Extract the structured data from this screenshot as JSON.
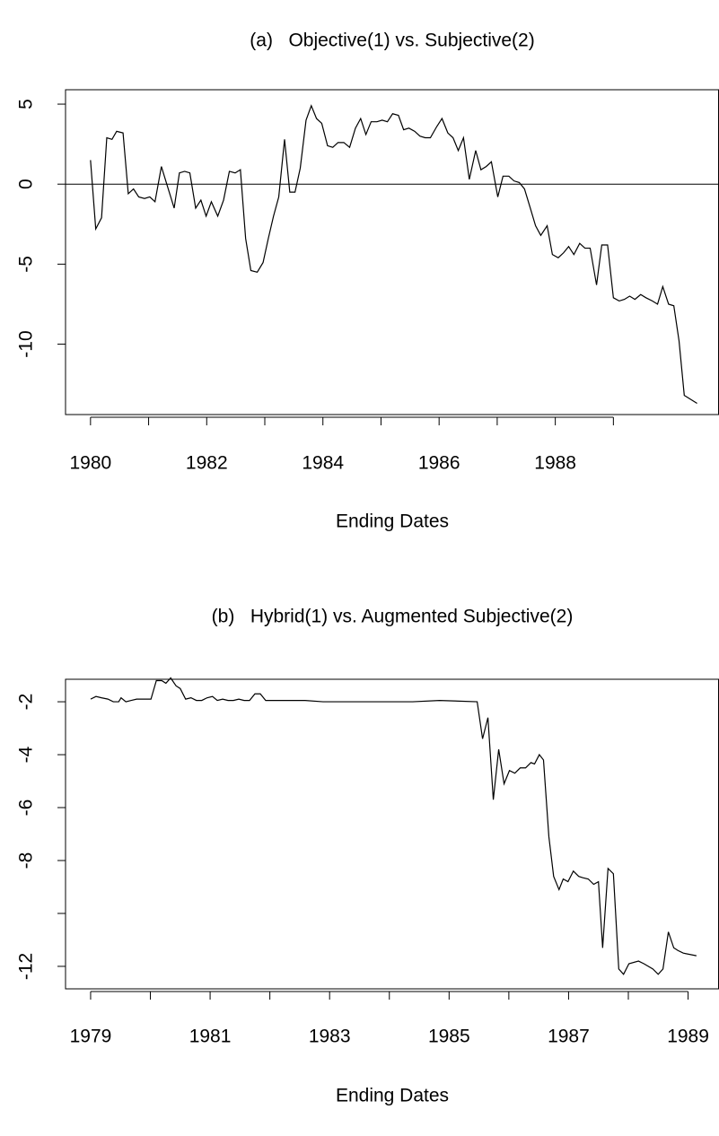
{
  "chart_data": [
    {
      "type": "line",
      "title": "(a)   Objective(1) vs. Subjective(2)",
      "xlabel": "Ending Dates",
      "color": "#000000",
      "x": [
        1980.0,
        1980.09,
        1980.19,
        1980.28,
        1980.37,
        1980.45,
        1980.56,
        1980.65,
        1980.74,
        1980.83,
        1980.93,
        1981.02,
        1981.11,
        1981.22,
        1981.33,
        1981.44,
        1981.53,
        1981.62,
        1981.71,
        1981.81,
        1981.9,
        1981.99,
        1982.08,
        1982.19,
        1982.29,
        1982.39,
        1982.49,
        1982.58,
        1982.67,
        1982.76,
        1982.87,
        1982.97,
        1983.06,
        1983.15,
        1983.24,
        1983.34,
        1983.43,
        1983.52,
        1983.61,
        1983.71,
        1983.8,
        1983.89,
        1983.98,
        1984.08,
        1984.17,
        1984.26,
        1984.36,
        1984.46,
        1984.56,
        1984.65,
        1984.74,
        1984.83,
        1984.93,
        1985.02,
        1985.11,
        1985.2,
        1985.3,
        1985.39,
        1985.48,
        1985.58,
        1985.67,
        1985.76,
        1985.85,
        1985.96,
        1986.05,
        1986.15,
        1986.24,
        1986.33,
        1986.42,
        1986.52,
        1986.63,
        1986.72,
        1986.81,
        1986.9,
        1987.01,
        1987.1,
        1987.2,
        1987.29,
        1987.38,
        1987.47,
        1987.57,
        1987.66,
        1987.75,
        1987.86,
        1987.95,
        1988.05,
        1988.14,
        1988.23,
        1988.32,
        1988.42,
        1988.51,
        1988.6,
        1988.71,
        1988.8,
        1988.9,
        1989.0,
        1989.1,
        1989.19,
        1989.28,
        1989.37,
        1989.47,
        1989.56,
        1989.67,
        1989.76,
        1989.85,
        1989.95,
        1990.04,
        1990.13,
        1990.22,
        1990.44
      ],
      "values": [
        1.5,
        -2.8,
        -2.1,
        2.9,
        2.8,
        3.3,
        3.2,
        -0.6,
        -0.3,
        -0.8,
        -0.9,
        -0.8,
        -1.1,
        1.1,
        -0.2,
        -1.5,
        0.7,
        0.8,
        0.7,
        -1.5,
        -1.0,
        -2.0,
        -1.1,
        -2.0,
        -1.0,
        0.8,
        0.7,
        0.9,
        -3.4,
        -5.4,
        -5.5,
        -4.9,
        -3.4,
        -2.0,
        -0.8,
        2.8,
        -0.5,
        -0.5,
        1.0,
        4.0,
        4.9,
        4.1,
        3.8,
        2.4,
        2.3,
        2.6,
        2.6,
        2.3,
        3.5,
        4.1,
        3.1,
        3.9,
        3.9,
        4.0,
        3.9,
        4.4,
        4.3,
        3.4,
        3.5,
        3.3,
        3.0,
        2.9,
        2.9,
        3.6,
        4.1,
        3.2,
        2.9,
        2.1,
        2.9,
        0.3,
        2.1,
        0.9,
        1.1,
        1.4,
        -0.8,
        0.5,
        0.5,
        0.2,
        0.1,
        -0.3,
        -1.5,
        -2.6,
        -3.2,
        -2.6,
        -4.4,
        -4.6,
        -4.3,
        -3.9,
        -4.4,
        -3.7,
        -4.0,
        -4.0,
        -6.3,
        -3.8,
        -3.8,
        -7.1,
        -7.3,
        -7.2,
        -7.0,
        -7.2,
        -6.9,
        -7.1,
        -7.3,
        -7.5,
        -6.4,
        -7.5,
        -7.6,
        -9.8,
        -13.2,
        -13.7
      ],
      "xlim": [
        1979.57,
        1990.81
      ],
      "ylim": [
        -14.4,
        5.9
      ],
      "xticks": [
        1980,
        1982,
        1984,
        1986,
        1988
      ],
      "xminor_ticks": [
        1981,
        1983,
        1985,
        1987,
        1989
      ],
      "yticks": [
        5,
        0,
        -5,
        -10
      ],
      "yminor_ticks": [],
      "hline": 0
    },
    {
      "type": "line",
      "title": "(b)   Hybrid(1) vs. Augmented Subjective(2)",
      "xlabel": "Ending Dates",
      "color": "#000000",
      "x": [
        1979.0,
        1979.09,
        1979.18,
        1979.29,
        1979.38,
        1979.47,
        1979.51,
        1979.59,
        1979.68,
        1979.77,
        1979.86,
        1980.01,
        1980.1,
        1980.19,
        1980.26,
        1980.34,
        1980.43,
        1980.5,
        1980.59,
        1980.68,
        1980.77,
        1980.86,
        1980.95,
        1981.04,
        1981.12,
        1981.21,
        1981.3,
        1981.39,
        1981.48,
        1981.57,
        1981.66,
        1981.75,
        1981.84,
        1981.93,
        1982.02,
        1982.29,
        1982.59,
        1982.89,
        1983.49,
        1983.79,
        1984.39,
        1984.84,
        1985.47,
        1985.56,
        1985.65,
        1985.74,
        1985.83,
        1985.92,
        1986.01,
        1986.1,
        1986.19,
        1986.28,
        1986.37,
        1986.43,
        1986.51,
        1986.58,
        1986.67,
        1986.75,
        1986.84,
        1986.91,
        1986.99,
        1987.08,
        1987.17,
        1987.24,
        1987.33,
        1987.42,
        1987.5,
        1987.57,
        1987.66,
        1987.75,
        1987.84,
        1987.92,
        1988.01,
        1988.17,
        1988.26,
        1988.41,
        1988.5,
        1988.58,
        1988.67,
        1988.76,
        1988.83,
        1988.92,
        1989.14
      ],
      "values": [
        -1.9,
        -1.8,
        -1.85,
        -1.9,
        -2.0,
        -2.0,
        -1.85,
        -2.0,
        -1.95,
        -1.9,
        -1.9,
        -1.9,
        -1.2,
        -1.2,
        -1.3,
        -1.1,
        -1.4,
        -1.5,
        -1.9,
        -1.85,
        -1.95,
        -1.95,
        -1.85,
        -1.8,
        -1.95,
        -1.9,
        -1.95,
        -1.95,
        -1.9,
        -1.95,
        -1.95,
        -1.7,
        -1.7,
        -1.95,
        -1.95,
        -1.95,
        -1.95,
        -2.0,
        -2.0,
        -2.0,
        -2.0,
        -1.95,
        -2.0,
        -3.4,
        -2.6,
        -5.7,
        -3.8,
        -5.1,
        -4.6,
        -4.7,
        -4.5,
        -4.5,
        -4.3,
        -4.35,
        -4.0,
        -4.2,
        -7.1,
        -8.6,
        -9.1,
        -8.7,
        -8.8,
        -8.4,
        -8.6,
        -8.65,
        -8.7,
        -8.9,
        -8.8,
        -11.3,
        -8.3,
        -8.5,
        -12.1,
        -12.3,
        -11.9,
        -11.8,
        -11.9,
        -12.1,
        -12.3,
        -12.1,
        -10.7,
        -11.3,
        -11.4,
        -11.5,
        -11.6
      ],
      "xlim": [
        1978.58,
        1989.51
      ],
      "ylim": [
        -12.85,
        -1.15
      ],
      "xticks": [
        1979,
        1981,
        1983,
        1985,
        1987,
        1989
      ],
      "xminor_ticks": [
        1980,
        1982,
        1984,
        1986,
        1988
      ],
      "yticks": [
        -2,
        -4,
        -6,
        -8,
        -12
      ],
      "yminor_ticks": [
        -10
      ]
    }
  ]
}
